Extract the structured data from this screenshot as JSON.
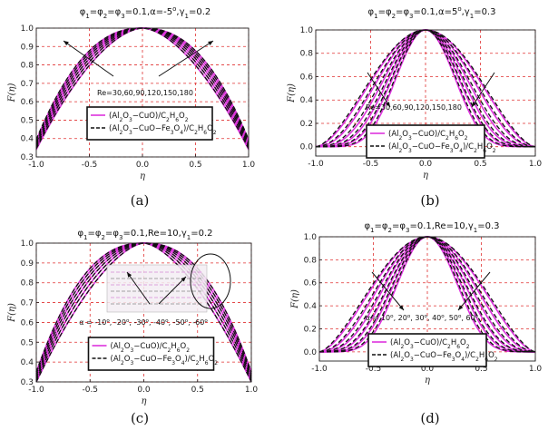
{
  "chart_data": [
    {
      "type": "line",
      "panel": "(a)",
      "title": "φ1=φ2=φ3=0.1,α=-5°,γ1=0.2",
      "xlabel": "η",
      "ylabel": "F(η)",
      "xlim": [
        -1.0,
        1.0
      ],
      "ylim": [
        0.3,
        1.0
      ],
      "xticks": [
        "-1.0",
        "-0.5",
        "0.0",
        "0.5",
        "1.0"
      ],
      "yticks": [
        "0.3",
        "0.4",
        "0.5",
        "0.6",
        "0.7",
        "0.8",
        "0.9",
        "1.0"
      ],
      "grid": true,
      "annotation": "Re=30,60,90,120,150,180",
      "legend_position": "bottom-center",
      "series": [
        {
          "name": "(Al2O3−CuO)/C2H6O2",
          "color": "#dd33dd",
          "style": "solid",
          "edge_values": [
            0.34,
            0.35,
            0.36,
            0.37,
            0.38,
            0.39
          ]
        },
        {
          "name": "(Al2O3−CuO−Fe3O4)/C2H6O2",
          "color": "#111111",
          "style": "dashed",
          "edge_values": [
            0.345,
            0.355,
            0.365,
            0.375,
            0.385,
            0.395
          ]
        }
      ]
    },
    {
      "type": "line",
      "panel": "(b)",
      "title": "φ1=φ2=φ3=0.1,α=5°,γ1=0.3",
      "xlabel": "η",
      "ylabel": "F(η)",
      "xlim": [
        -1.0,
        1.0
      ],
      "ylim": [
        -0.08,
        1.0
      ],
      "xticks": [
        "-1.0",
        "-0.5",
        "0.0",
        "0.5",
        "1.0"
      ],
      "yticks": [
        "0.0",
        "0.2",
        "0.4",
        "0.6",
        "0.8",
        "1.0"
      ],
      "grid": true,
      "annotation": "Re=30,60,90,120,150,180",
      "legend_position": "bottom-center",
      "series": [
        {
          "name": "(Al2O3−CuO)/C2H6O2",
          "color": "#dd33dd",
          "style": "solid",
          "exponents": [
            1.7,
            2.2,
            2.9,
            3.7,
            4.6,
            5.8
          ]
        },
        {
          "name": "(Al2O3−CuO−Fe3O4)/C2H6O2",
          "color": "#111111",
          "style": "dashed",
          "exponents": [
            1.6,
            2.05,
            2.65,
            3.4,
            4.3,
            5.4
          ]
        }
      ]
    },
    {
      "type": "line",
      "panel": "(c)",
      "title": "φ1=φ2=φ3=0.1,Re=10,γ1=0.2",
      "xlabel": "η",
      "ylabel": "F(η)",
      "xlim": [
        -1.0,
        1.0
      ],
      "ylim": [
        0.3,
        1.0
      ],
      "xticks": [
        "-1.0",
        "-0.5",
        "0.0",
        "0.5",
        "1.0"
      ],
      "yticks": [
        "0.3",
        "0.4",
        "0.5",
        "0.6",
        "0.7",
        "0.8",
        "0.9",
        "1.0"
      ],
      "grid": true,
      "annotation": "α = -10°, -20°, -30°, -40°, -50°, -60°",
      "legend_position": "bottom-center",
      "series": [
        {
          "name": "(Al2O3−CuO)/C2H6O2",
          "color": "#dd33dd",
          "style": "solid",
          "edge_values": [
            0.3,
            0.31,
            0.32,
            0.33,
            0.34,
            0.35
          ]
        },
        {
          "name": "(Al2O3−CuO−Fe3O4)/C2H6O2",
          "color": "#111111",
          "style": "dashed",
          "edge_values": [
            0.3,
            0.31,
            0.32,
            0.33,
            0.34,
            0.35
          ]
        }
      ]
    },
    {
      "type": "line",
      "panel": "(d)",
      "title": "φ1=φ2=φ3=0.1,Re=10,γ1=0.3",
      "xlabel": "η",
      "ylabel": "F(η)",
      "xlim": [
        -1.0,
        1.0
      ],
      "ylim": [
        -0.08,
        1.0
      ],
      "xticks": [
        "-1.0",
        "-0.5",
        "0.0",
        "0.5",
        "1.0"
      ],
      "yticks": [
        "0.0",
        "0.2",
        "0.4",
        "0.6",
        "0.8",
        "1.0"
      ],
      "grid": true,
      "annotation": "α = 10°, 20°, 30°, 40°, 50°, 60°",
      "legend_position": "bottom-center",
      "series": [
        {
          "name": "(Al2O3−CuO)/C2H6O2",
          "color": "#dd33dd",
          "style": "solid",
          "exponents": [
            1.6,
            2.1,
            2.7,
            3.4,
            4.3,
            5.4
          ]
        },
        {
          "name": "(Al2O3−CuO−Fe3O4)/C2H6O2",
          "color": "#111111",
          "style": "dashed",
          "exponents": [
            1.5,
            1.95,
            2.5,
            3.2,
            4.0,
            5.0
          ]
        }
      ]
    }
  ],
  "colors": {
    "magenta": "#dd33dd",
    "black": "#111111",
    "grid": "#e03030"
  }
}
